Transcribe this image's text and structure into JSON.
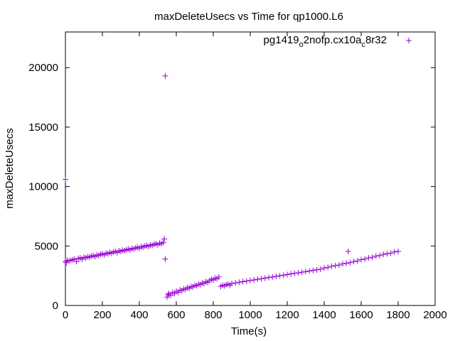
{
  "chart_data": {
    "type": "scatter",
    "title": "maxDeleteUsecs vs Time for qp1000.L6",
    "xlabel": "Time(s)",
    "ylabel": "maxDeleteUsecs",
    "xlim": [
      0,
      2000
    ],
    "ylim": [
      0,
      23000
    ],
    "x_ticks": [
      0,
      200,
      400,
      600,
      800,
      1000,
      1200,
      1400,
      1600,
      1800,
      2000
    ],
    "y_ticks": [
      0,
      5000,
      10000,
      15000,
      20000
    ],
    "x_tick_labels": [
      "0",
      "200",
      "400",
      "600",
      "800",
      "1000",
      "1200",
      "1400",
      "1600",
      "1800",
      "2000"
    ],
    "y_tick_labels": [
      "0",
      "5000",
      "10000",
      "15000",
      "20000"
    ],
    "grid": false,
    "legend_position": "top-right",
    "series": [
      {
        "name": "pg1419_o2nofp.cx10a_c8r32",
        "legend_text": {
          "base": "pg1419",
          "sub1": "o",
          "mid": "2nofp.cx10a",
          "sub2": "c",
          "end": "8r32"
        },
        "color": "#9400d3",
        "marker": "plus",
        "points": [
          [
            0,
            10600
          ],
          [
            0,
            3700
          ],
          [
            5,
            3600
          ],
          [
            10,
            3800
          ],
          [
            20,
            3750
          ],
          [
            30,
            3800
          ],
          [
            40,
            3850
          ],
          [
            50,
            3900
          ],
          [
            60,
            3700
          ],
          [
            70,
            3950
          ],
          [
            80,
            4000
          ],
          [
            90,
            3900
          ],
          [
            100,
            4050
          ],
          [
            110,
            4000
          ],
          [
            120,
            4100
          ],
          [
            130,
            4050
          ],
          [
            140,
            4150
          ],
          [
            150,
            4200
          ],
          [
            160,
            4100
          ],
          [
            170,
            4250
          ],
          [
            180,
            4200
          ],
          [
            190,
            4300
          ],
          [
            200,
            4350
          ],
          [
            210,
            4250
          ],
          [
            220,
            4400
          ],
          [
            230,
            4350
          ],
          [
            240,
            4450
          ],
          [
            250,
            4400
          ],
          [
            260,
            4500
          ],
          [
            270,
            4550
          ],
          [
            280,
            4450
          ],
          [
            290,
            4600
          ],
          [
            300,
            4550
          ],
          [
            310,
            4650
          ],
          [
            320,
            4600
          ],
          [
            330,
            4700
          ],
          [
            340,
            4750
          ],
          [
            350,
            4650
          ],
          [
            360,
            4800
          ],
          [
            370,
            4750
          ],
          [
            380,
            4850
          ],
          [
            390,
            4900
          ],
          [
            400,
            4800
          ],
          [
            410,
            4950
          ],
          [
            420,
            4900
          ],
          [
            430,
            5000
          ],
          [
            440,
            5050
          ],
          [
            450,
            4950
          ],
          [
            460,
            5100
          ],
          [
            470,
            5050
          ],
          [
            480,
            5150
          ],
          [
            490,
            5200
          ],
          [
            500,
            5100
          ],
          [
            510,
            5250
          ],
          [
            520,
            5200
          ],
          [
            530,
            5300
          ],
          [
            535,
            5600
          ],
          [
            540,
            19300
          ],
          [
            540,
            3900
          ],
          [
            550,
            700
          ],
          [
            555,
            900
          ],
          [
            560,
            1000
          ],
          [
            570,
            850
          ],
          [
            580,
            1100
          ],
          [
            590,
            1000
          ],
          [
            600,
            1200
          ],
          [
            610,
            1100
          ],
          [
            620,
            1300
          ],
          [
            630,
            1250
          ],
          [
            640,
            1400
          ],
          [
            650,
            1350
          ],
          [
            660,
            1500
          ],
          [
            670,
            1450
          ],
          [
            680,
            1600
          ],
          [
            690,
            1550
          ],
          [
            700,
            1700
          ],
          [
            710,
            1650
          ],
          [
            720,
            1800
          ],
          [
            730,
            1750
          ],
          [
            740,
            1900
          ],
          [
            750,
            1850
          ],
          [
            760,
            2000
          ],
          [
            770,
            1950
          ],
          [
            780,
            2100
          ],
          [
            790,
            2200
          ],
          [
            800,
            2150
          ],
          [
            810,
            2300
          ],
          [
            820,
            2250
          ],
          [
            830,
            2400
          ],
          [
            840,
            1600
          ],
          [
            850,
            1700
          ],
          [
            860,
            1650
          ],
          [
            870,
            1750
          ],
          [
            880,
            1800
          ],
          [
            890,
            1700
          ],
          [
            900,
            1850
          ],
          [
            920,
            1900
          ],
          [
            940,
            1950
          ],
          [
            960,
            2000
          ],
          [
            980,
            2050
          ],
          [
            1000,
            2100
          ],
          [
            1020,
            2150
          ],
          [
            1040,
            2200
          ],
          [
            1060,
            2250
          ],
          [
            1080,
            2300
          ],
          [
            1100,
            2350
          ],
          [
            1120,
            2400
          ],
          [
            1140,
            2450
          ],
          [
            1160,
            2500
          ],
          [
            1180,
            2550
          ],
          [
            1200,
            2600
          ],
          [
            1220,
            2650
          ],
          [
            1240,
            2700
          ],
          [
            1260,
            2750
          ],
          [
            1280,
            2800
          ],
          [
            1300,
            2850
          ],
          [
            1320,
            2900
          ],
          [
            1340,
            2950
          ],
          [
            1360,
            3000
          ],
          [
            1380,
            3050
          ],
          [
            1400,
            3150
          ],
          [
            1420,
            3200
          ],
          [
            1440,
            3300
          ],
          [
            1460,
            3350
          ],
          [
            1480,
            3400
          ],
          [
            1500,
            3500
          ],
          [
            1520,
            3550
          ],
          [
            1530,
            4550
          ],
          [
            1540,
            3600
          ],
          [
            1560,
            3700
          ],
          [
            1580,
            3750
          ],
          [
            1600,
            3850
          ],
          [
            1620,
            3900
          ],
          [
            1640,
            4000
          ],
          [
            1660,
            4050
          ],
          [
            1680,
            4150
          ],
          [
            1700,
            4200
          ],
          [
            1720,
            4300
          ],
          [
            1740,
            4350
          ],
          [
            1760,
            4400
          ],
          [
            1780,
            4500
          ],
          [
            1800,
            4550
          ]
        ]
      }
    ]
  }
}
